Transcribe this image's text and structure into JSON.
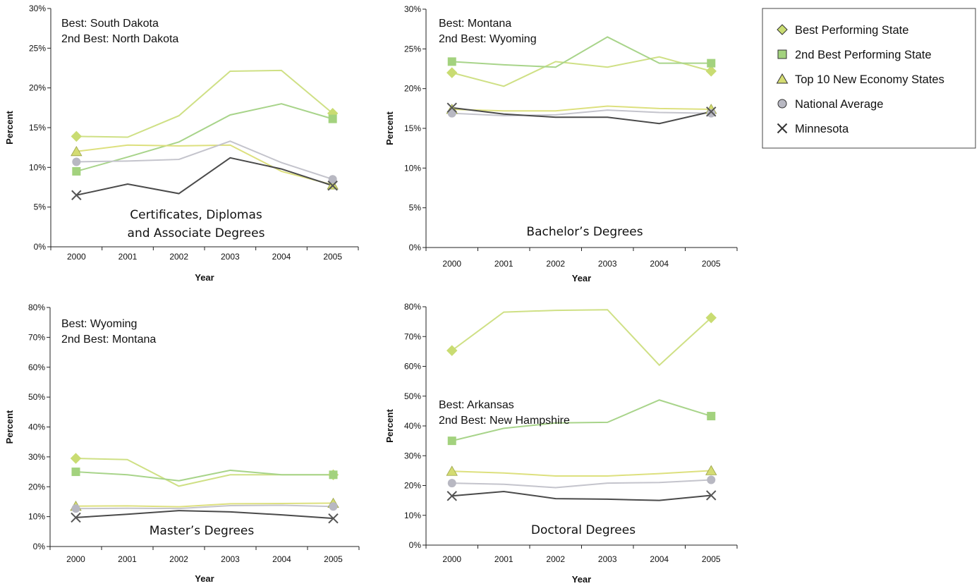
{
  "colors": {
    "best": "#cfe085",
    "second": "#a8d48a",
    "top10": "#dde07e",
    "national": "#c4c4cc",
    "minnesota": "#4a4a4a",
    "best_marker": "#c9dc72",
    "second_marker": "#a3d27e",
    "top10_marker": "#d4dc72",
    "national_marker": "#b8b8c2",
    "minnesota_marker": "#555555"
  },
  "legend": {
    "items": [
      {
        "key": "best",
        "label": "Best Performing State",
        "marker": "diamond"
      },
      {
        "key": "second",
        "label": "2nd Best Performing State",
        "marker": "square"
      },
      {
        "key": "top10",
        "label": "Top 10 New Economy States",
        "marker": "triangle"
      },
      {
        "key": "national",
        "label": "National Average",
        "marker": "circle"
      },
      {
        "key": "minnesota",
        "label": "Minnesota",
        "marker": "x"
      }
    ]
  },
  "chart_data": [
    {
      "type": "line",
      "caption": [
        "Certificates, Diplomas",
        "and Associate Degrees"
      ],
      "note": [
        "Best:  South Dakota",
        "2nd Best: North Dakota"
      ],
      "xlabel": "Year",
      "ylabel": "Percent",
      "categories": [
        "2000",
        "2001",
        "2002",
        "2003",
        "2004",
        "2005"
      ],
      "y_ticks": [
        "0%",
        "5%",
        "10%",
        "15%",
        "20%",
        "25%",
        "30%"
      ],
      "ylim": [
        0,
        30
      ],
      "series": [
        {
          "key": "best",
          "values": [
            13.9,
            13.8,
            16.5,
            22.1,
            22.2,
            16.8
          ],
          "markers": [
            0,
            5
          ]
        },
        {
          "key": "second",
          "values": [
            9.5,
            11.3,
            13.2,
            16.6,
            18.0,
            16.1
          ],
          "markers": [
            0,
            5
          ]
        },
        {
          "key": "top10",
          "values": [
            12.0,
            12.8,
            12.7,
            12.8,
            9.5,
            7.8
          ],
          "markers": [
            0,
            5
          ]
        },
        {
          "key": "national",
          "values": [
            10.7,
            10.8,
            11.0,
            13.3,
            10.6,
            8.5
          ],
          "markers": [
            0,
            5
          ]
        },
        {
          "key": "minnesota",
          "values": [
            6.5,
            7.9,
            6.7,
            11.2,
            9.8,
            7.7
          ],
          "markers": [
            0,
            5
          ]
        }
      ]
    },
    {
      "type": "line",
      "caption": [
        "Bachelor’s Degrees"
      ],
      "note": [
        "Best:  Montana",
        "2nd Best: Wyoming"
      ],
      "xlabel": "Year",
      "ylabel": "Percent",
      "categories": [
        "2000",
        "2001",
        "2002",
        "2003",
        "2004",
        "2005"
      ],
      "y_ticks": [
        "0%",
        "5%",
        "10%",
        "15%",
        "20%",
        "25%",
        "30%"
      ],
      "ylim": [
        0,
        30
      ],
      "series": [
        {
          "key": "best",
          "values": [
            22.0,
            20.3,
            23.4,
            22.7,
            24.0,
            22.2
          ],
          "markers": [
            0,
            5
          ]
        },
        {
          "key": "second",
          "values": [
            23.4,
            23.0,
            22.7,
            26.5,
            23.2,
            23.2
          ],
          "markers": [
            0,
            5
          ]
        },
        {
          "key": "top10",
          "values": [
            17.4,
            17.2,
            17.2,
            17.8,
            17.5,
            17.4
          ],
          "markers": [
            0,
            5
          ]
        },
        {
          "key": "national",
          "values": [
            16.9,
            16.6,
            16.7,
            17.3,
            17.0,
            16.9
          ],
          "markers": [
            0,
            5
          ]
        },
        {
          "key": "minnesota",
          "values": [
            17.6,
            16.8,
            16.4,
            16.4,
            15.6,
            17.1
          ],
          "markers": [
            0,
            5
          ]
        }
      ]
    },
    {
      "type": "line",
      "caption": [
        "Master’s Degrees"
      ],
      "note": [
        "Best:  Wyoming",
        "2nd Best: Montana"
      ],
      "xlabel": "Year",
      "ylabel": "Percent",
      "categories": [
        "2000",
        "2001",
        "2002",
        "2003",
        "2004",
        "2005"
      ],
      "y_ticks": [
        "0%",
        "10%",
        "20%",
        "30%",
        "40%",
        "50%",
        "60%",
        "70%",
        "80%"
      ],
      "ylim": [
        0,
        80
      ],
      "series": [
        {
          "key": "best",
          "values": [
            29.5,
            29.1,
            20.2,
            24.0,
            24.0,
            24.0
          ],
          "markers": [
            0,
            5
          ]
        },
        {
          "key": "second",
          "values": [
            25.0,
            24.0,
            22.0,
            25.5,
            24.0,
            24.0
          ],
          "markers": [
            0,
            5
          ]
        },
        {
          "key": "top10",
          "values": [
            13.5,
            13.6,
            13.3,
            14.3,
            14.4,
            14.5
          ],
          "markers": [
            0,
            5
          ]
        },
        {
          "key": "national",
          "values": [
            12.7,
            12.8,
            12.7,
            13.7,
            13.8,
            13.4
          ],
          "markers": [
            0,
            5
          ]
        },
        {
          "key": "minnesota",
          "values": [
            9.7,
            10.8,
            12.0,
            11.6,
            10.6,
            9.4
          ],
          "markers": [
            0,
            5
          ]
        }
      ]
    },
    {
      "type": "line",
      "caption": [
        "Doctoral Degrees"
      ],
      "note": [
        "Best:  Arkansas",
        "2nd Best: New Hampshire"
      ],
      "xlabel": "Year",
      "ylabel": "Percent",
      "categories": [
        "2000",
        "2001",
        "2002",
        "2003",
        "2004",
        "2005"
      ],
      "y_ticks": [
        "0%",
        "10%",
        "20%",
        "30%",
        "40%",
        "50%",
        "60%",
        "70%",
        "80%"
      ],
      "ylim": [
        0,
        80
      ],
      "series": [
        {
          "key": "best",
          "values": [
            65.3,
            78.2,
            78.8,
            79.0,
            60.4,
            76.3
          ],
          "markers": [
            0,
            5
          ]
        },
        {
          "key": "second",
          "values": [
            35.0,
            39.2,
            41.0,
            41.2,
            48.7,
            43.3
          ],
          "markers": [
            0,
            5
          ]
        },
        {
          "key": "top10",
          "values": [
            24.8,
            24.2,
            23.2,
            23.2,
            24.0,
            25.0
          ],
          "markers": [
            0,
            5
          ]
        },
        {
          "key": "national",
          "values": [
            20.8,
            20.4,
            19.3,
            20.8,
            21.0,
            21.9
          ],
          "markers": [
            0,
            5
          ]
        },
        {
          "key": "minnesota",
          "values": [
            16.5,
            18.0,
            15.6,
            15.4,
            15.0,
            16.7
          ],
          "markers": [
            0,
            5
          ]
        }
      ]
    }
  ]
}
